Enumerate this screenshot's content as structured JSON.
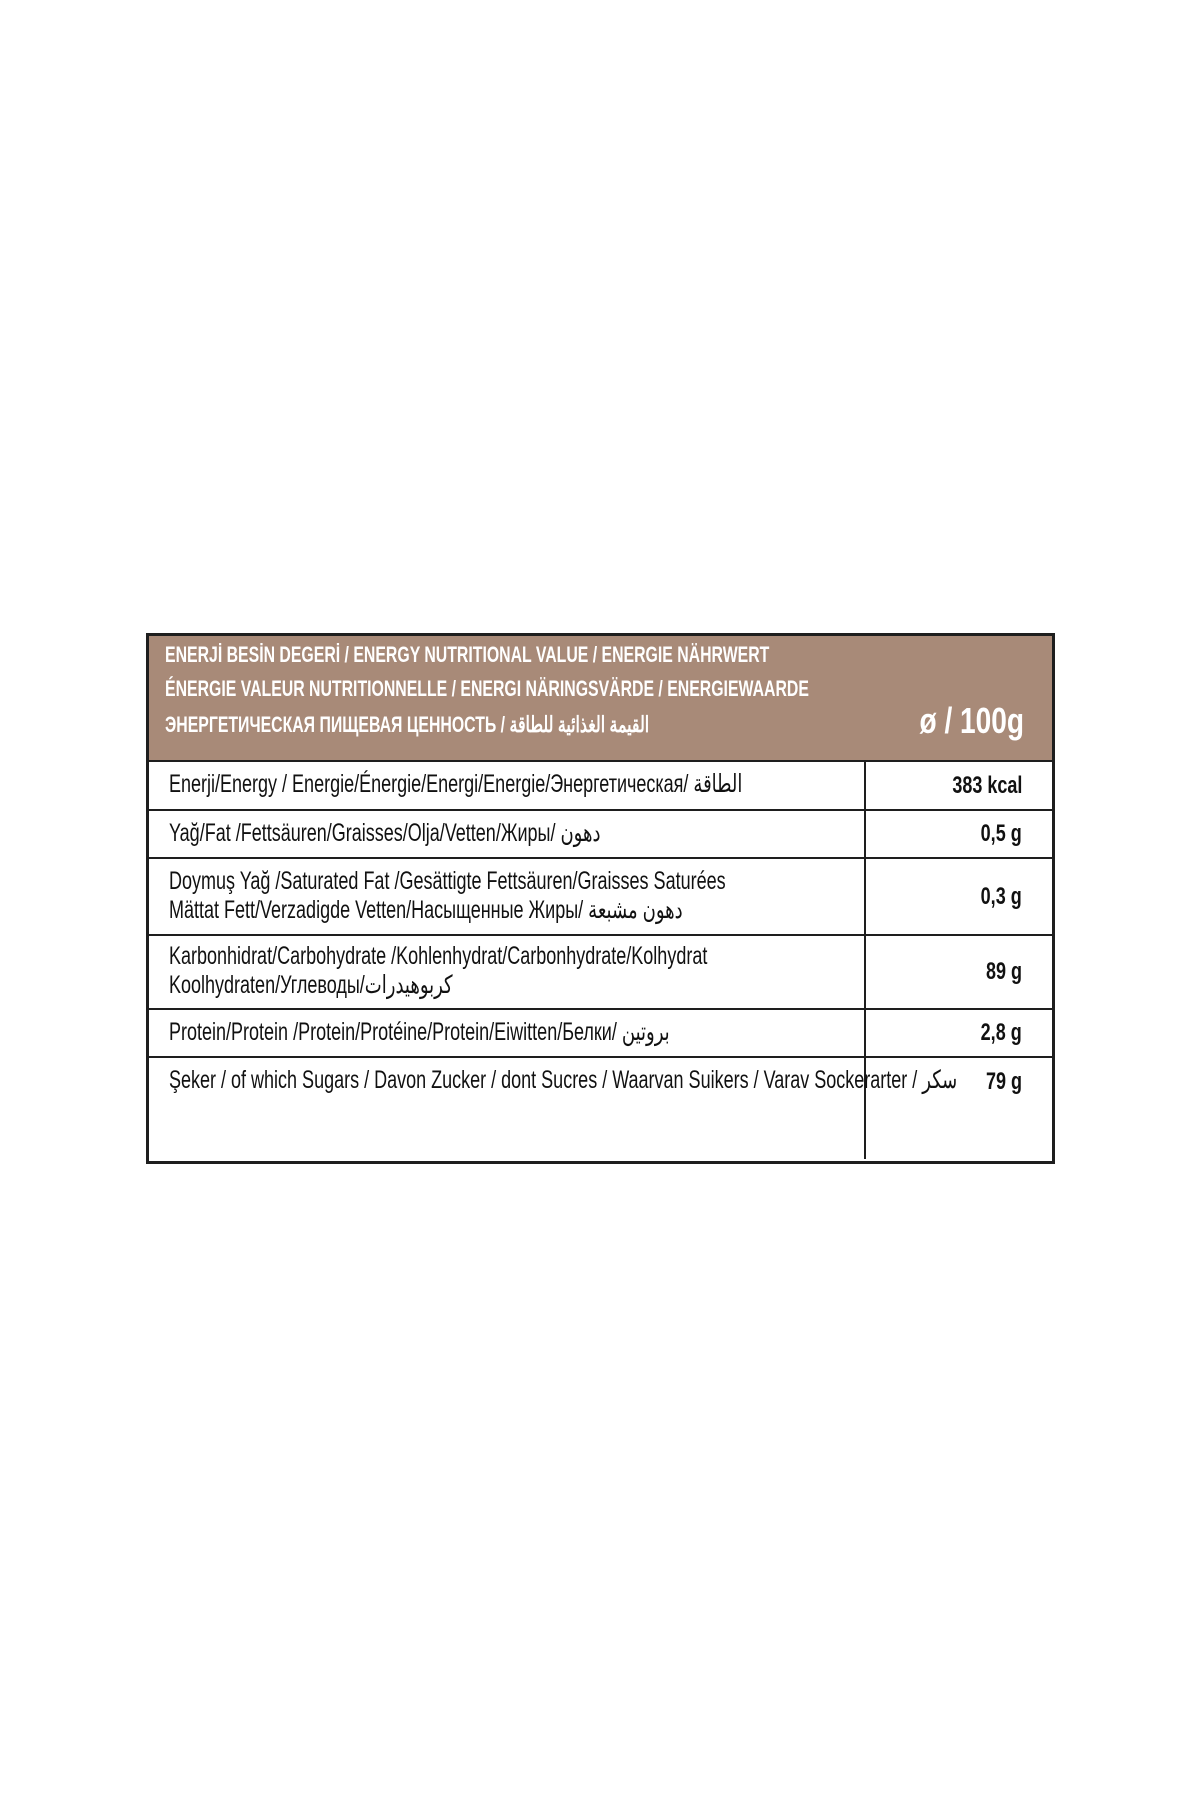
{
  "header": {
    "lines": [
      "ENERJİ BESİN DEGERİ / ENERGY NUTRITIONAL VALUE / ENERGIE NÄHRWERT",
      "ÉNERGIE VALEUR NUTRITIONNELLE / ENERGI NÄRINGSVÄRDE / ENERGIEWAARDE",
      "ЭНЕРГЕТИЧЕСКАЯ ПИЩЕВАЯ ЦЕННОСТЬ / القيمة الغذائية للطاقة"
    ],
    "unit": "ø / 100g"
  },
  "table": {
    "rows": [
      {
        "label": [
          "Enerji/Energy / Energie/Énergie/Energi/Energie/Энергетическая/ الطاقة"
        ],
        "value": "383 kcal"
      },
      {
        "label": [
          "Yağ/Fat /Fettsäuren/Graisses/Olja/Vetten/Жиры/ دهون"
        ],
        "value": "0,5 g"
      },
      {
        "label": [
          "Doymuş Yağ /Saturated Fat /Gesättigte Fettsäuren/Graisses Saturées",
          "Mättat Fett/Verzadigde Vetten/Насыщенные Жиры/ دهون مشبعة"
        ],
        "value": "0,3 g"
      },
      {
        "label": [
          "Karbonhidrat/Carbohydrate /Kohlenhydrat/Carbonhydrate/Kolhydrat",
          "Koolhydraten/Углеводы/كربوهيدرات"
        ],
        "value": "89 g"
      },
      {
        "label": [
          "Protein/Protein /Protein/Protéine/Protein/Eiwitten/Белки/ بروتين"
        ],
        "value": "2,8 g"
      },
      {
        "label": [
          "Şeker / of which Sugars / Davon Zucker / dont Sucres / Waarvan Suikers / Varav Sockerarter / سكر"
        ],
        "value": "79 g"
      }
    ]
  }
}
